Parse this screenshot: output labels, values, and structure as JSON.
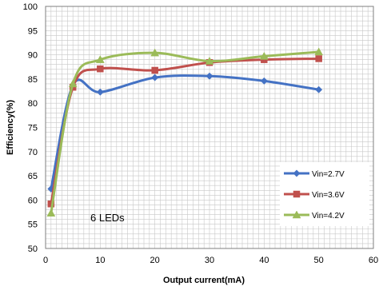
{
  "chart_data": {
    "type": "line",
    "xlabel": "Output current(mA)",
    "ylabel": "Efficiency(%)",
    "xlim": [
      0,
      60
    ],
    "ylim": [
      50,
      100
    ],
    "xticks": [
      0,
      10,
      20,
      30,
      40,
      50,
      60
    ],
    "yticks": [
      50,
      55,
      60,
      65,
      70,
      75,
      80,
      85,
      90,
      95,
      100
    ],
    "grid": true,
    "legend_position": "right",
    "annotation": "6 LEDs",
    "series": [
      {
        "name": "Vin=2.7V",
        "color": "#4472C4",
        "marker": "diamond",
        "x": [
          1,
          5,
          10,
          20,
          30,
          40,
          50
        ],
        "y": [
          62.3,
          83.7,
          82.3,
          85.3,
          85.6,
          84.6,
          82.8
        ]
      },
      {
        "name": "Vin=3.6V",
        "color": "#C0504D",
        "marker": "square",
        "x": [
          1,
          5,
          10,
          20,
          30,
          40,
          50
        ],
        "y": [
          59.2,
          83.3,
          87.1,
          86.8,
          88.4,
          89.0,
          89.2
        ]
      },
      {
        "name": "Vin=4.2V",
        "color": "#9BBB59",
        "marker": "triangle",
        "x": [
          1,
          5,
          10,
          20,
          30,
          40,
          50
        ],
        "y": [
          57.3,
          84.0,
          89.0,
          90.4,
          88.7,
          89.7,
          90.6
        ]
      }
    ]
  }
}
